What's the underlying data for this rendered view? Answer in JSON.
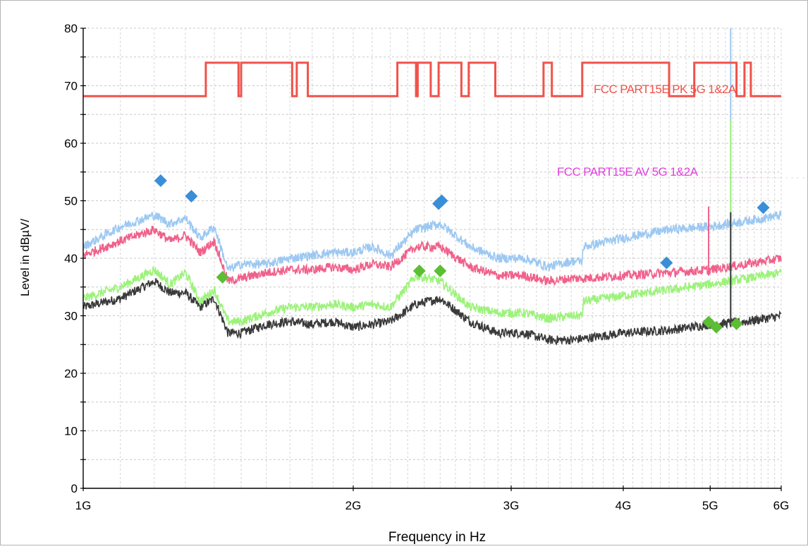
{
  "chart_data": {
    "type": "line",
    "title": "",
    "xlabel": "Frequency in Hz",
    "ylabel": "Level in dBµV/",
    "x_scale": "log",
    "xlim": [
      1000000000,
      6000000000
    ],
    "ylim": [
      0,
      80
    ],
    "x_ticks": [
      {
        "value": 1000000000,
        "label": "1G"
      },
      {
        "value": 2000000000,
        "label": "2G"
      },
      {
        "value": 3000000000,
        "label": "3G"
      },
      {
        "value": 4000000000,
        "label": "4G"
      },
      {
        "value": 5000000000,
        "label": "5G"
      },
      {
        "value": 6000000000,
        "label": "6G"
      }
    ],
    "y_ticks": [
      0,
      10,
      20,
      30,
      40,
      50,
      60,
      70,
      80
    ],
    "grid": true,
    "colors": {
      "pk_limit": "#f0524a",
      "av_limit": "#e040e0",
      "peak_light_blue": "#9cc8f2",
      "peak_pink": "#f0608a",
      "avg_green": "#9cf27a",
      "avg_dark": "#3a3a3a",
      "peak_markers": "#3a8ed8",
      "avg_markers": "#5cbe34"
    },
    "limit_lines": [
      {
        "name": "FCC PART15E PK 5G 1&2A",
        "steps": [
          [
            1000000000,
            68.2
          ],
          [
            1370000000,
            68.2
          ],
          [
            1370000000,
            74
          ],
          [
            1490000000,
            74
          ],
          [
            1490000000,
            68.2
          ],
          [
            1500000000,
            68.2
          ],
          [
            1500000000,
            74
          ],
          [
            1710000000,
            74
          ],
          [
            1710000000,
            68.2
          ],
          [
            1730000000,
            68.2
          ],
          [
            1730000000,
            74
          ],
          [
            1780000000,
            74
          ],
          [
            1780000000,
            68.2
          ],
          [
            2240000000,
            68.2
          ],
          [
            2240000000,
            74
          ],
          [
            2350000000,
            74
          ],
          [
            2350000000,
            68.2
          ],
          [
            2360000000,
            68.2
          ],
          [
            2360000000,
            74
          ],
          [
            2440000000,
            74
          ],
          [
            2440000000,
            68.2
          ],
          [
            2490000000,
            68.2
          ],
          [
            2490000000,
            74
          ],
          [
            2640000000,
            74
          ],
          [
            2640000000,
            68.2
          ],
          [
            2690000000,
            68.2
          ],
          [
            2690000000,
            74
          ],
          [
            2880000000,
            74
          ],
          [
            2880000000,
            68.2
          ],
          [
            3260000000,
            68.2
          ],
          [
            3260000000,
            74
          ],
          [
            3330000000,
            74
          ],
          [
            3330000000,
            68.2
          ],
          [
            3600000000,
            68.2
          ],
          [
            3600000000,
            74
          ],
          [
            4500000000,
            74
          ],
          [
            4500000000,
            68.2
          ],
          [
            4800000000,
            68.2
          ],
          [
            4800000000,
            74
          ],
          [
            5350000000,
            74
          ],
          [
            5350000000,
            68.2
          ],
          [
            5460000000,
            68.2
          ],
          [
            5460000000,
            74
          ],
          [
            5550000000,
            74
          ],
          [
            5550000000,
            68.2
          ],
          [
            6000000000,
            68.2
          ]
        ]
      },
      {
        "name": "FCC PART15E AV 5G 1&2A",
        "steps": [
          [
            1370000000,
            54
          ],
          [
            1710000000,
            54
          ],
          [
            2240000000,
            54
          ],
          [
            2880000000,
            54
          ],
          [
            3600000000,
            54
          ],
          [
            4500000000,
            54
          ],
          [
            4800000000,
            54
          ],
          [
            5350000000,
            54
          ]
        ]
      }
    ],
    "series": [
      {
        "color_key": "peak_light_blue",
        "points": [
          [
            1000000000,
            42
          ],
          [
            1100000000,
            45.5
          ],
          [
            1200000000,
            47.5
          ],
          [
            1250000000,
            46
          ],
          [
            1300000000,
            47
          ],
          [
            1350000000,
            43.5
          ],
          [
            1400000000,
            45.5
          ],
          [
            1450000000,
            38
          ],
          [
            1500000000,
            39
          ],
          [
            1600000000,
            39
          ],
          [
            1700000000,
            40
          ],
          [
            1800000000,
            40.5
          ],
          [
            1900000000,
            41
          ],
          [
            2000000000,
            41
          ],
          [
            2100000000,
            42
          ],
          [
            2200000000,
            40.5
          ],
          [
            2350000000,
            45
          ],
          [
            2500000000,
            46
          ],
          [
            2700000000,
            42
          ],
          [
            2900000000,
            40
          ],
          [
            3100000000,
            40
          ],
          [
            3300000000,
            38.5
          ],
          [
            3500000000,
            39.5
          ],
          [
            3600000000,
            39.5
          ],
          [
            3610000000,
            42
          ],
          [
            4000000000,
            43.5
          ],
          [
            4500000000,
            45
          ],
          [
            5000000000,
            45.5
          ],
          [
            5500000000,
            46.5
          ],
          [
            6000000000,
            47.5
          ]
        ]
      },
      {
        "color_key": "peak_pink",
        "points": [
          [
            1000000000,
            40.5
          ],
          [
            1100000000,
            43
          ],
          [
            1200000000,
            45
          ],
          [
            1250000000,
            43
          ],
          [
            1300000000,
            44
          ],
          [
            1350000000,
            41
          ],
          [
            1400000000,
            43
          ],
          [
            1450000000,
            36
          ],
          [
            1500000000,
            36.5
          ],
          [
            1600000000,
            37.5
          ],
          [
            1700000000,
            38
          ],
          [
            1800000000,
            38
          ],
          [
            1900000000,
            38.5
          ],
          [
            2000000000,
            38
          ],
          [
            2100000000,
            39
          ],
          [
            2200000000,
            38.5
          ],
          [
            2350000000,
            42
          ],
          [
            2500000000,
            42
          ],
          [
            2700000000,
            38.5
          ],
          [
            2900000000,
            37
          ],
          [
            3100000000,
            37
          ],
          [
            3300000000,
            36
          ],
          [
            3500000000,
            36.5
          ],
          [
            3600000000,
            36.5
          ],
          [
            4000000000,
            37
          ],
          [
            4500000000,
            37.5
          ],
          [
            5000000000,
            38
          ],
          [
            5500000000,
            39
          ],
          [
            6000000000,
            40
          ]
        ]
      },
      {
        "color_key": "avg_green",
        "points": [
          [
            1000000000,
            33
          ],
          [
            1100000000,
            35
          ],
          [
            1200000000,
            38
          ],
          [
            1250000000,
            35.5
          ],
          [
            1300000000,
            37.5
          ],
          [
            1350000000,
            32.5
          ],
          [
            1400000000,
            34.5
          ],
          [
            1450000000,
            29
          ],
          [
            1500000000,
            29
          ],
          [
            1600000000,
            30.5
          ],
          [
            1700000000,
            31.5
          ],
          [
            1800000000,
            31.5
          ],
          [
            1900000000,
            32
          ],
          [
            2000000000,
            31.5
          ],
          [
            2100000000,
            32
          ],
          [
            2200000000,
            31.5
          ],
          [
            2350000000,
            37
          ],
          [
            2500000000,
            36
          ],
          [
            2700000000,
            31.5
          ],
          [
            2900000000,
            30.5
          ],
          [
            3100000000,
            30.5
          ],
          [
            3300000000,
            29.5
          ],
          [
            3500000000,
            30
          ],
          [
            3600000000,
            30
          ],
          [
            3610000000,
            32.5
          ],
          [
            4000000000,
            33.5
          ],
          [
            4500000000,
            34.5
          ],
          [
            5000000000,
            35.5
          ],
          [
            5500000000,
            36.5
          ],
          [
            6000000000,
            37.5
          ]
        ]
      },
      {
        "color_key": "avg_dark",
        "points": [
          [
            1000000000,
            31.5
          ],
          [
            1100000000,
            33
          ],
          [
            1200000000,
            36
          ],
          [
            1250000000,
            34
          ],
          [
            1300000000,
            34
          ],
          [
            1350000000,
            31.5
          ],
          [
            1400000000,
            33
          ],
          [
            1450000000,
            27
          ],
          [
            1500000000,
            27
          ],
          [
            1600000000,
            28.5
          ],
          [
            1700000000,
            29
          ],
          [
            1800000000,
            28.5
          ],
          [
            1900000000,
            29
          ],
          [
            2000000000,
            28
          ],
          [
            2100000000,
            28.5
          ],
          [
            2200000000,
            29
          ],
          [
            2350000000,
            32
          ],
          [
            2500000000,
            33
          ],
          [
            2700000000,
            29
          ],
          [
            2900000000,
            27
          ],
          [
            3100000000,
            27
          ],
          [
            3300000000,
            25.8
          ],
          [
            3500000000,
            25.8
          ],
          [
            3600000000,
            26
          ],
          [
            4000000000,
            27
          ],
          [
            4500000000,
            27.5
          ],
          [
            5000000000,
            28.5
          ],
          [
            5500000000,
            29
          ],
          [
            6000000000,
            30
          ]
        ]
      }
    ],
    "spikes": [
      {
        "color_key": "peak_light_blue",
        "x": 5270000000,
        "y0": 30,
        "y1": 80
      },
      {
        "color_key": "peak_pink",
        "x": 4980000000,
        "y0": 37,
        "y1": 49
      },
      {
        "color_key": "avg_green",
        "x": 5270000000,
        "y0": 30,
        "y1": 64
      },
      {
        "color_key": "avg_dark",
        "x": 5270000000,
        "y0": 28,
        "y1": 48
      }
    ],
    "markers": [
      {
        "color_key": "peak_markers",
        "x": 1220000000,
        "y": 53.5
      },
      {
        "color_key": "peak_markers",
        "x": 1320000000,
        "y": 50.8
      },
      {
        "color_key": "peak_markers",
        "x": 2490000000,
        "y": 49.5
      },
      {
        "color_key": "peak_markers",
        "x": 2510000000,
        "y": 50
      },
      {
        "color_key": "peak_markers",
        "x": 4470000000,
        "y": 39.2
      },
      {
        "color_key": "peak_markers",
        "x": 5730000000,
        "y": 48.8
      },
      {
        "color_key": "avg_markers",
        "x": 1430000000,
        "y": 36.7
      },
      {
        "color_key": "avg_markers",
        "x": 2370000000,
        "y": 37.8
      },
      {
        "color_key": "avg_markers",
        "x": 2500000000,
        "y": 37.8
      },
      {
        "color_key": "avg_markers",
        "x": 4980000000,
        "y": 28.9
      },
      {
        "color_key": "avg_markers",
        "x": 5080000000,
        "y": 28
      },
      {
        "color_key": "avg_markers",
        "x": 5350000000,
        "y": 28.6
      }
    ]
  }
}
